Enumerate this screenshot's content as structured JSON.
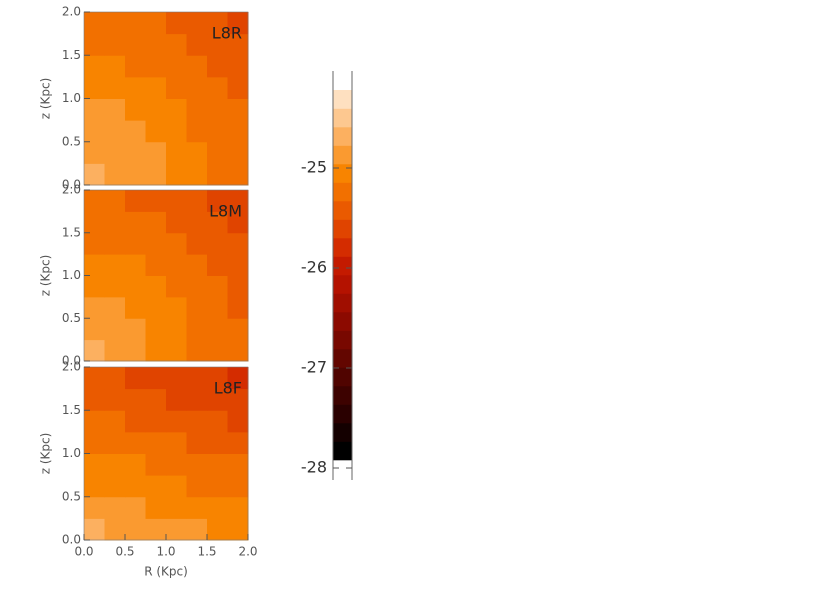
{
  "chart_data": [
    {
      "type": "contour",
      "label": "L8R",
      "ylabel": "z (Kpc)",
      "xlim": [
        0,
        2
      ],
      "ylim": [
        0,
        2
      ],
      "yticks": [
        {
          "value": 0,
          "label": "0.0"
        },
        {
          "value": 0.5,
          "label": "0.5"
        },
        {
          "value": 1,
          "label": "1.0"
        },
        {
          "value": 1.5,
          "label": "1.5"
        },
        {
          "value": 2,
          "label": "2.0"
        }
      ],
      "x": [
        0.125,
        0.375,
        0.625,
        0.875,
        1.125,
        1.375,
        1.625,
        1.875
      ],
      "y": [
        0.125,
        0.375,
        0.625,
        0.875,
        1.125,
        1.375,
        1.625,
        1.875
      ],
      "values": [
        [
          -24.71,
          -24.78,
          -24.86,
          -24.94,
          -25.02,
          -25.11,
          -25.19,
          -25.27
        ],
        [
          -24.78,
          -24.82,
          -24.89,
          -24.96,
          -25.04,
          -25.12,
          -25.2,
          -25.28
        ],
        [
          -24.86,
          -24.89,
          -24.94,
          -25.0,
          -25.07,
          -25.15,
          -25.22,
          -25.3
        ],
        [
          -24.94,
          -24.96,
          -25.0,
          -25.06,
          -25.12,
          -25.19,
          -25.26,
          -25.33
        ],
        [
          -25.02,
          -25.04,
          -25.07,
          -25.12,
          -25.18,
          -25.24,
          -25.3,
          -25.37
        ],
        [
          -25.11,
          -25.12,
          -25.15,
          -25.19,
          -25.24,
          -25.29,
          -25.35,
          -25.42
        ],
        [
          -25.19,
          -25.2,
          -25.22,
          -25.26,
          -25.3,
          -25.35,
          -25.41,
          -25.47
        ],
        [
          -25.27,
          -25.28,
          -25.3,
          -25.33,
          -25.37,
          -25.42,
          -25.47,
          -25.53
        ]
      ]
    },
    {
      "type": "contour",
      "label": "L8M",
      "ylabel": "z (Kpc)",
      "xlim": [
        0,
        2
      ],
      "ylim": [
        0,
        2
      ],
      "yticks": [
        {
          "value": 0,
          "label": "0.0"
        },
        {
          "value": 0.5,
          "label": "0.5"
        },
        {
          "value": 1,
          "label": "1.0"
        },
        {
          "value": 1.5,
          "label": "1.5"
        },
        {
          "value": 2,
          "label": "2.0"
        }
      ],
      "x": [
        0.125,
        0.375,
        0.625,
        0.875,
        1.125,
        1.375,
        1.625,
        1.875
      ],
      "y": [
        0.125,
        0.375,
        0.625,
        0.875,
        1.125,
        1.375,
        1.625,
        1.875
      ],
      "values": [
        [
          -24.76,
          -24.83,
          -24.91,
          -24.99,
          -25.07,
          -25.16,
          -25.24,
          -25.32
        ],
        [
          -24.83,
          -24.87,
          -24.94,
          -25.01,
          -25.09,
          -25.17,
          -25.25,
          -25.33
        ],
        [
          -24.91,
          -24.94,
          -24.99,
          -25.05,
          -25.12,
          -25.2,
          -25.27,
          -25.35
        ],
        [
          -24.99,
          -25.01,
          -25.05,
          -25.11,
          -25.17,
          -25.24,
          -25.31,
          -25.38
        ],
        [
          -25.07,
          -25.09,
          -25.12,
          -25.17,
          -25.23,
          -25.29,
          -25.35,
          -25.42
        ],
        [
          -25.16,
          -25.17,
          -25.2,
          -25.24,
          -25.29,
          -25.34,
          -25.4,
          -25.47
        ],
        [
          -25.24,
          -25.25,
          -25.27,
          -25.31,
          -25.35,
          -25.4,
          -25.46,
          -25.52
        ],
        [
          -25.32,
          -25.33,
          -25.35,
          -25.38,
          -25.42,
          -25.47,
          -25.52,
          -25.58
        ]
      ]
    },
    {
      "type": "contour",
      "label": "L8F",
      "ylabel": "z (Kpc)",
      "xlabel": "R (Kpc)",
      "xlim": [
        0,
        2
      ],
      "ylim": [
        0,
        2
      ],
      "xticks": [
        {
          "value": 0,
          "label": "0.0"
        },
        {
          "value": 0.5,
          "label": "0.5"
        },
        {
          "value": 1,
          "label": "1.0"
        },
        {
          "value": 1.5,
          "label": "1.5"
        },
        {
          "value": 2,
          "label": "2.0"
        }
      ],
      "yticks": [
        {
          "value": 0,
          "label": "0.0"
        },
        {
          "value": 0.5,
          "label": "0.5"
        },
        {
          "value": 1,
          "label": "1.0"
        },
        {
          "value": 1.5,
          "label": "1.5"
        },
        {
          "value": 2,
          "label": "2.0"
        }
      ],
      "x": [
        0.125,
        0.375,
        0.625,
        0.875,
        1.125,
        1.375,
        1.625,
        1.875
      ],
      "y": [
        0.125,
        0.375,
        0.625,
        0.875,
        1.125,
        1.375,
        1.625,
        1.875
      ],
      "values": [
        [
          -24.77,
          -24.81,
          -24.84,
          -24.88,
          -24.92,
          -24.96,
          -24.99,
          -25.03
        ],
        [
          -24.87,
          -24.91,
          -24.94,
          -24.98,
          -25.02,
          -25.06,
          -25.09,
          -25.13
        ],
        [
          -24.97,
          -25.01,
          -25.04,
          -25.08,
          -25.12,
          -25.16,
          -25.19,
          -25.23
        ],
        [
          -25.07,
          -25.11,
          -25.14,
          -25.18,
          -25.22,
          -25.26,
          -25.29,
          -25.33
        ],
        [
          -25.17,
          -25.21,
          -25.24,
          -25.28,
          -25.32,
          -25.36,
          -25.39,
          -25.43
        ],
        [
          -25.27,
          -25.31,
          -25.34,
          -25.38,
          -25.42,
          -25.46,
          -25.49,
          -25.53
        ],
        [
          -25.37,
          -25.41,
          -25.44,
          -25.48,
          -25.52,
          -25.56,
          -25.59,
          -25.63
        ],
        [
          -25.47,
          -25.51,
          -25.54,
          -25.58,
          -25.62,
          -25.66,
          -25.69,
          -25.73
        ]
      ]
    },
    {
      "type": "colorbar",
      "ylim": [
        -28.12,
        -24.03
      ],
      "yticks": [
        -25,
        -26,
        -27,
        -28
      ],
      "levels": [
        -27.92,
        -27.735,
        -27.55,
        -27.365,
        -27.18,
        -26.995,
        -26.81,
        -26.625,
        -26.44,
        -26.255,
        -26.07,
        -25.885,
        -25.7,
        -25.515,
        -25.33,
        -25.145,
        -24.96,
        -24.775,
        -24.59,
        -24.405,
        -24.22
      ],
      "colors": [
        "#000000",
        "#140000",
        "#2a0000",
        "#3d0200",
        "#500400",
        "#630600",
        "#780800",
        "#8c0a00",
        "#a00e00",
        "#b41200",
        "#c41a00",
        "#d42c00",
        "#e04400",
        "#ea5a00",
        "#f27000",
        "#f88400",
        "#fa9a30",
        "#fcb060",
        "#fdc890",
        "#fee0c0"
      ]
    }
  ]
}
